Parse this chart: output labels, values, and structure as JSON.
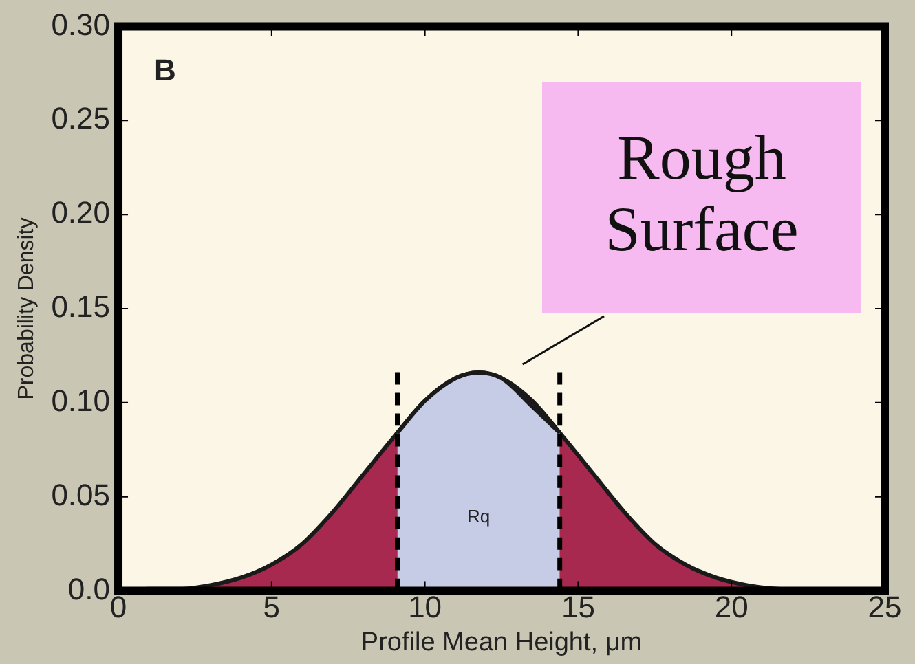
{
  "chart_data": {
    "type": "area",
    "xlabel": "Profile Mean Height, μm",
    "ylabel": "Probability Density",
    "xlim": [
      0,
      25
    ],
    "xticks": [
      0,
      5,
      10,
      15,
      20,
      25
    ],
    "ylim": [
      0,
      0.3
    ],
    "yticks": [
      {
        "value": 0,
        "label": "0.0"
      },
      {
        "value": 0.05,
        "label": "0.05"
      },
      {
        "value": 0.1,
        "label": "0.10"
      },
      {
        "value": 0.15,
        "label": "0.15"
      },
      {
        "value": 0.2,
        "label": "0.20"
      },
      {
        "value": 0.25,
        "label": "0.25"
      },
      {
        "value": 0.3,
        "label": "0.30"
      }
    ],
    "grid": false,
    "legend": false,
    "marker": "none",
    "series": [
      {
        "color": "#a8294f",
        "x": [
          0,
          1,
          2,
          3,
          4,
          5,
          6,
          7,
          8,
          9,
          10,
          11,
          11.75,
          12.5,
          13.5,
          14.5,
          15.5,
          16.5,
          17.5,
          18.5,
          19.5,
          20.5,
          21.5,
          23
        ],
        "values": [
          0,
          0.001,
          0.001,
          0.003,
          0.007,
          0.014,
          0.025,
          0.042,
          0.062,
          0.082,
          0.101,
          0.113,
          0.116,
          0.113,
          0.101,
          0.082,
          0.062,
          0.042,
          0.025,
          0.014,
          0.007,
          0.003,
          0.001,
          0
        ]
      },
      {
        "color": "#c6cce6",
        "x": [
          9.1,
          10,
          11,
          11.75,
          12.5,
          13.5,
          14.4
        ],
        "values": [
          0.084,
          0.101,
          0.113,
          0.116,
          0.113,
          0.098,
          0.084
        ]
      },
      {
        "type": "line",
        "color": "#000000",
        "line_style": "dashed",
        "x": [
          9.1,
          9.1
        ],
        "values": [
          0,
          0.118
        ]
      },
      {
        "type": "line",
        "color": "#000000",
        "line_style": "dashed",
        "x": [
          14.4,
          14.4
        ],
        "values": [
          0,
          0.118
        ]
      }
    ],
    "annotations": [
      "B",
      "Rq",
      "Rough Surface"
    ]
  }
}
